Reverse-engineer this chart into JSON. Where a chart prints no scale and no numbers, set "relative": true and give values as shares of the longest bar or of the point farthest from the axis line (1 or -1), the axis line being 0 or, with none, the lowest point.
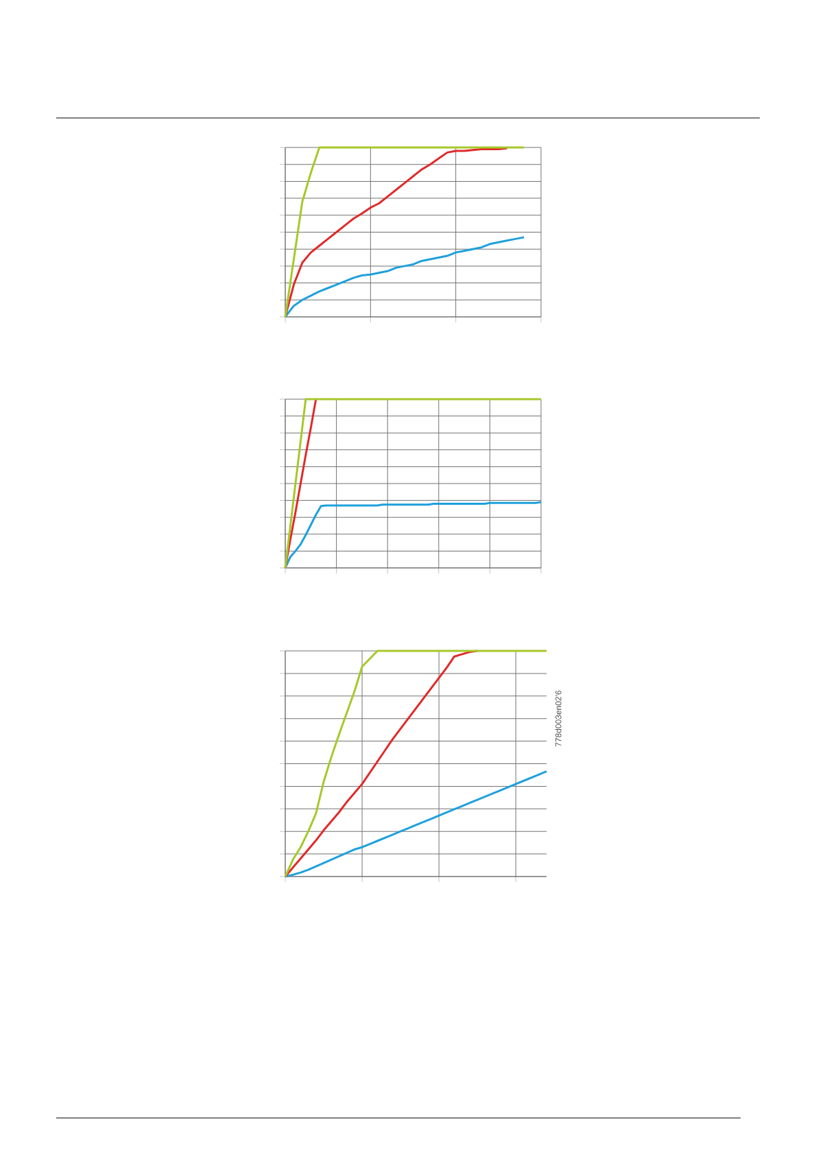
{
  "chart_data": [
    {
      "type": "line",
      "relative": true,
      "grid": true,
      "categories": [
        null,
        null,
        null,
        null,
        null,
        null,
        null,
        null,
        null,
        null,
        null,
        null,
        null,
        null,
        null,
        null,
        null,
        null,
        null,
        null,
        null,
        null,
        null,
        null,
        null,
        null,
        null,
        null,
        null,
        null,
        null
      ],
      "series": [
        {
          "color": "#1ea0dc",
          "values": [
            0,
            0.065,
            0.1,
            0.125,
            0.15,
            0.17,
            0.19,
            0.21,
            0.23,
            0.245,
            0.25,
            0.26,
            0.27,
            0.29,
            0.3,
            0.31,
            0.33,
            0.34,
            0.35,
            0.36,
            0.38,
            0.39,
            0.4,
            0.41,
            0.43,
            0.44,
            0.45,
            0.46,
            0.47,
            null,
            null
          ]
        },
        {
          "color": "#e02a2a",
          "values": [
            0,
            0.19,
            0.32,
            0.38,
            0.42,
            0.46,
            0.5,
            0.54,
            0.58,
            0.61,
            0.645,
            0.67,
            0.71,
            0.75,
            0.79,
            0.83,
            0.87,
            0.9,
            0.935,
            0.97,
            0.98,
            0.98,
            0.985,
            0.99,
            0.99,
            0.99,
            0.995,
            null,
            null,
            null,
            null
          ]
        },
        {
          "color": "#a6c82a",
          "values": [
            0,
            0.34,
            0.68,
            0.85,
            1,
            1,
            1,
            1,
            1,
            1,
            1,
            1,
            1,
            1,
            1,
            1,
            1,
            1,
            1,
            1,
            1,
            1,
            1,
            1,
            1,
            1,
            1,
            1,
            1,
            null,
            null
          ]
        }
      ]
    },
    {
      "type": "line",
      "relative": true,
      "grid": true,
      "categories": [
        null,
        null,
        null,
        null,
        null,
        null,
        null,
        null,
        null,
        null,
        null,
        null,
        null,
        null,
        null,
        null,
        null,
        null,
        null,
        null,
        null,
        null,
        null,
        null,
        null,
        null,
        null,
        null,
        null,
        null,
        null,
        null,
        null,
        null,
        null,
        null,
        null,
        null,
        null,
        null,
        null,
        null,
        null,
        null,
        null,
        null,
        null,
        null,
        null,
        null,
        null
      ],
      "series": [
        {
          "color": "#1ea0dc",
          "values": [
            0,
            0.065,
            0.1,
            0.14,
            0.195,
            0.255,
            0.315,
            0.367,
            0.37,
            0.37,
            0.37,
            0.37,
            0.37,
            0.37,
            0.37,
            0.37,
            0.37,
            0.37,
            0.37,
            0.375,
            0.375,
            0.375,
            0.375,
            0.375,
            0.375,
            0.375,
            0.375,
            0.375,
            0.375,
            0.38,
            0.38,
            0.38,
            0.38,
            0.38,
            0.38,
            0.38,
            0.38,
            0.38,
            0.38,
            0.38,
            0.385,
            0.385,
            0.385,
            0.385,
            0.385,
            0.385,
            0.385,
            0.385,
            0.385,
            0.385,
            0.39
          ]
        },
        {
          "color": "#e02a2a",
          "values": [
            0,
            0.17,
            0.33,
            0.5,
            0.67,
            0.83,
            1,
            null,
            null,
            null,
            null,
            null,
            null,
            null,
            null,
            null,
            null,
            null,
            null,
            null,
            null,
            null,
            null,
            null,
            null,
            null,
            null,
            null,
            null,
            null,
            null,
            null,
            null,
            null,
            null,
            null,
            null,
            null,
            null,
            null,
            null,
            null,
            null,
            null,
            null,
            null,
            null,
            null,
            null,
            null,
            null
          ]
        },
        {
          "color": "#a6c82a",
          "values": [
            0,
            0.25,
            0.5,
            0.75,
            1,
            1,
            1,
            1,
            1,
            1,
            1,
            1,
            1,
            1,
            1,
            1,
            1,
            1,
            1,
            1,
            1,
            1,
            1,
            1,
            1,
            1,
            1,
            1,
            1,
            1,
            1,
            1,
            1,
            1,
            1,
            1,
            1,
            1,
            1,
            1,
            1,
            1,
            1,
            1,
            1,
            1,
            1,
            1,
            1,
            1,
            1
          ]
        }
      ]
    },
    {
      "type": "line",
      "relative": true,
      "grid": true,
      "annotations": [
        "778d003en02'6"
      ],
      "categories": [
        null,
        null,
        null,
        null,
        null,
        null,
        null,
        null,
        null,
        null,
        null,
        null,
        null,
        null,
        null,
        null,
        null,
        null,
        null,
        null,
        null,
        null,
        null,
        null,
        null,
        null,
        null,
        null,
        null,
        null,
        null,
        null,
        null,
        null,
        null
      ],
      "series": [
        {
          "color": "#1ea0dc",
          "values": [
            0,
            0.008,
            0.018,
            0.03,
            0.045,
            0.06,
            0.075,
            0.09,
            0.105,
            0.12,
            0.13,
            0.144,
            0.158,
            0.172,
            0.186,
            0.2,
            0.214,
            0.228,
            0.242,
            0.256,
            0.27,
            0.284,
            0.298,
            0.312,
            0.326,
            0.34,
            0.354,
            0.368,
            0.382,
            0.396,
            0.41,
            0.424,
            0.438,
            0.452,
            0.466
          ]
        },
        {
          "color": "#e02a2a",
          "values": [
            0,
            0.04,
            0.08,
            0.12,
            0.16,
            0.205,
            0.245,
            0.285,
            0.33,
            0.37,
            0.41,
            0.46,
            0.51,
            0.56,
            0.61,
            0.655,
            0.7,
            0.745,
            0.79,
            0.835,
            0.88,
            0.925,
            0.975,
            0.985,
            0.995,
            1,
            null,
            null,
            null,
            null,
            null,
            null,
            null,
            null,
            null
          ]
        },
        {
          "color": "#a6c82a",
          "values": [
            0,
            0.075,
            0.13,
            0.2,
            0.28,
            0.42,
            0.53,
            0.63,
            0.725,
            0.82,
            0.93,
            0.965,
            1,
            1,
            1,
            1,
            1,
            1,
            1,
            1,
            1,
            1,
            1,
            1,
            1,
            1,
            1,
            1,
            1,
            1,
            1,
            1,
            1,
            1,
            1
          ]
        }
      ]
    }
  ]
}
